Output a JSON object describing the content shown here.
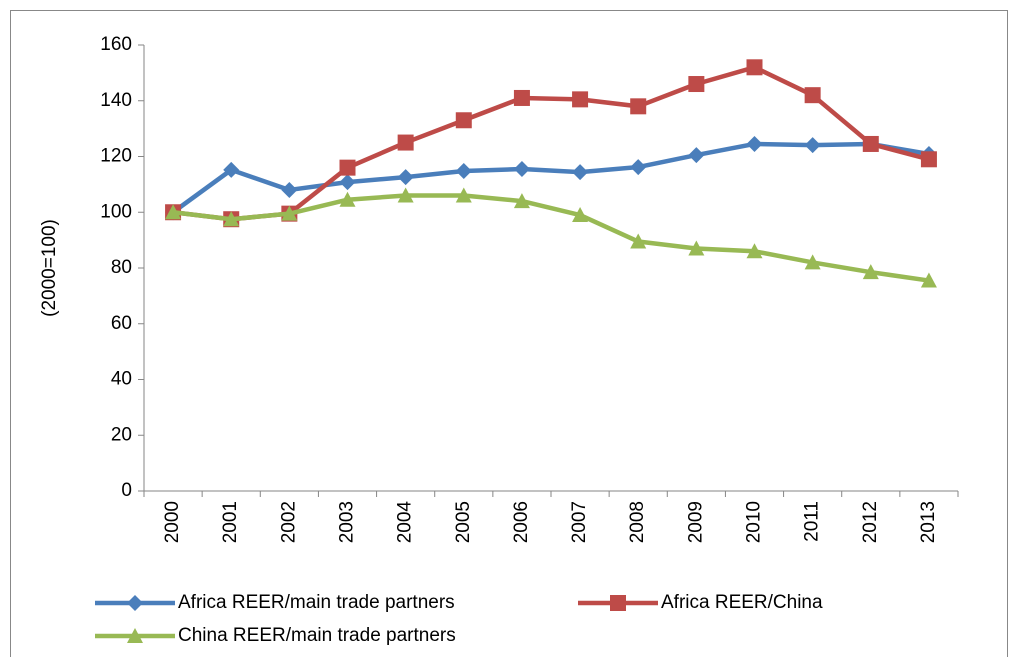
{
  "chart_data": {
    "type": "line",
    "y_label": "(2000=100)",
    "categories": [
      "2000",
      "2001",
      "2002",
      "2003",
      "2004",
      "2005",
      "2006",
      "2007",
      "2008",
      "2009",
      "2010",
      "2011",
      "2012",
      "2013"
    ],
    "series": [
      {
        "name": "Africa REER/main trade partners",
        "color": "#4a7ebb",
        "marker": "diamond",
        "values": [
          100,
          115.2,
          108,
          110.8,
          112.6,
          114.8,
          115.5,
          114.4,
          116.2,
          120.5,
          124.5,
          124.1,
          124.5,
          120.9
        ]
      },
      {
        "name": "Africa REER/China",
        "color": "#be4b48",
        "marker": "square",
        "values": [
          100,
          97.5,
          99.5,
          116,
          125,
          133,
          141,
          140.5,
          138,
          146,
          152,
          142,
          124.5,
          119
        ]
      },
      {
        "name": "China REER/main trade partners",
        "color": "#98b954",
        "marker": "triangle",
        "values": [
          100,
          97.5,
          99.5,
          104.5,
          106,
          106,
          104,
          99,
          89.5,
          87,
          86,
          82,
          78.5,
          75.5
        ]
      }
    ],
    "ylim": [
      0,
      160
    ],
    "yticks": [
      0,
      20,
      40,
      60,
      80,
      100,
      120,
      140,
      160
    ],
    "grid": false
  }
}
